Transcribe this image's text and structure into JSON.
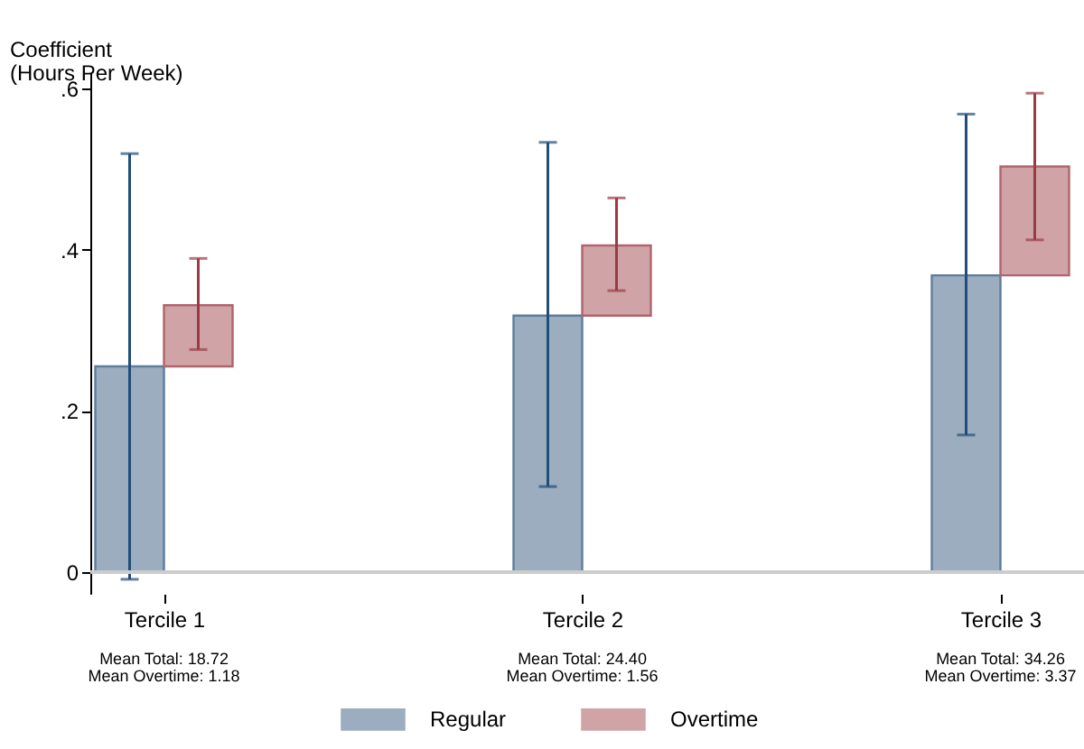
{
  "chart_data": {
    "type": "bar",
    "ylabel": "Coefficient\n(Hours Per Week)",
    "categories": [
      "Tercile 1",
      "Tercile 2",
      "Tercile 3"
    ],
    "series": [
      {
        "name": "Regular",
        "color": "#9badbe",
        "values": [
          0.255,
          0.318,
          0.368
        ],
        "errors": [
          [
            -0.009,
            0.519
          ],
          [
            0.106,
            0.533
          ],
          [
            0.17,
            0.568
          ]
        ]
      },
      {
        "name": "Overtime",
        "color": "#d0a4a7",
        "base": [
          0.255,
          0.318,
          0.368
        ],
        "values": [
          0.076,
          0.087,
          0.135
        ],
        "errors": [
          [
            0.276,
            0.389
          ],
          [
            0.349,
            0.464
          ],
          [
            0.412,
            0.594
          ]
        ]
      }
    ],
    "ylim": [
      -0.027,
      0.62
    ],
    "yticks": [
      {
        "value": 0,
        "label": "0"
      },
      {
        "value": 0.2,
        "label": ".2"
      },
      {
        "value": 0.4,
        "label": ".4"
      },
      {
        "value": 0.6,
        "label": ".6"
      }
    ],
    "annotations": [
      "Mean Total: 18.72\nMean Overtime: 1.18",
      "Mean Total: 24.40\nMean Overtime: 1.56",
      "Mean Total: 34.26\nMean Overtime: 3.37"
    ],
    "grid": false,
    "legend": "bottom"
  }
}
